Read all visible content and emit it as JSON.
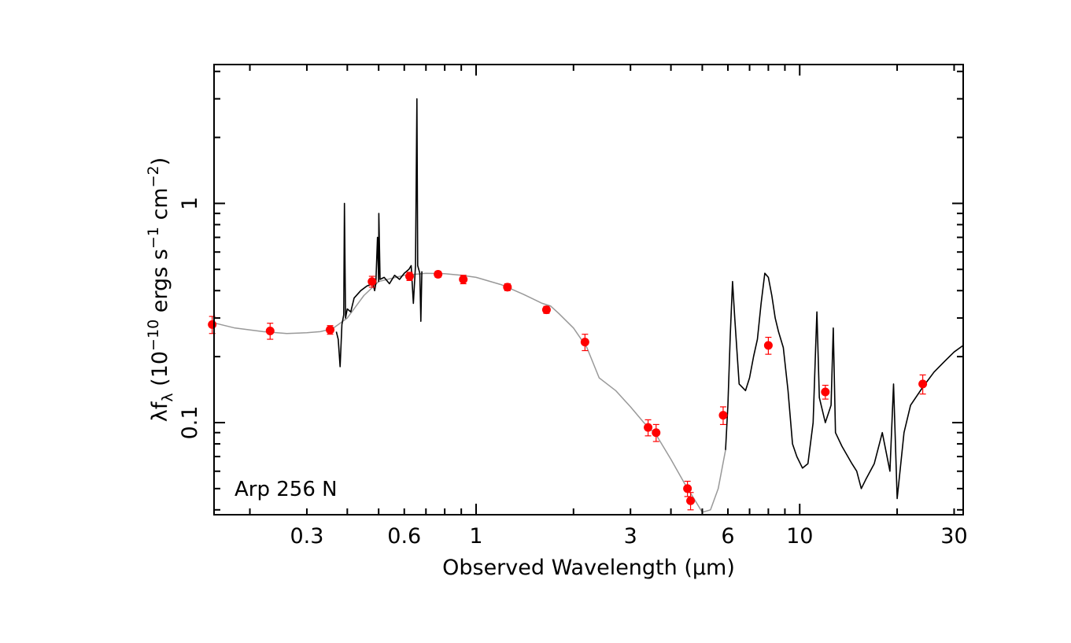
{
  "chart_data": {
    "type": "scatter",
    "title": "",
    "annotation": "Arp 256 N",
    "xlabel": "Observed Wavelength (μm)",
    "ylabel": {
      "base": "λf",
      "base_sub": "λ",
      "pre": " (10",
      "exp1": "−10",
      "mid1": " ergs s",
      "exp2": "−1",
      "mid2": " cm",
      "exp3": "−2",
      "post": ")"
    },
    "xscale": "log",
    "yscale": "log",
    "xlim": [
      0.155,
      32
    ],
    "ylim": [
      0.038,
      4.3
    ],
    "x_ticks": [
      {
        "value": 0.3,
        "label": "0.3"
      },
      {
        "value": 0.6,
        "label": "0.6"
      },
      {
        "value": 1,
        "label": "1"
      },
      {
        "value": 3,
        "label": "3"
      },
      {
        "value": 6,
        "label": "6"
      },
      {
        "value": 10,
        "label": "10"
      },
      {
        "value": 30,
        "label": "30"
      }
    ],
    "y_ticks": [
      {
        "value": 0.1,
        "label": "0.1"
      },
      {
        "value": 1,
        "label": "1"
      }
    ],
    "colors": {
      "photometry": "#ff0000",
      "spectrum_observed": "#000000",
      "model": "#999999",
      "axes": "#000000"
    },
    "series": [
      {
        "kind": "photometry",
        "points": [
          {
            "x": 0.153,
            "y": 0.28,
            "err": 0.025
          },
          {
            "x": 0.231,
            "y": 0.262,
            "err": 0.022
          },
          {
            "x": 0.354,
            "y": 0.265,
            "err": 0.012
          },
          {
            "x": 0.477,
            "y": 0.44,
            "err": 0.025
          },
          {
            "x": 0.623,
            "y": 0.465,
            "err": 0.02
          },
          {
            "x": 0.763,
            "y": 0.475,
            "err": 0.015
          },
          {
            "x": 0.913,
            "y": 0.45,
            "err": 0.02
          },
          {
            "x": 1.25,
            "y": 0.415,
            "err": 0.015
          },
          {
            "x": 1.65,
            "y": 0.327,
            "err": 0.012
          },
          {
            "x": 2.17,
            "y": 0.233,
            "err": 0.02
          },
          {
            "x": 3.4,
            "y": 0.095,
            "err": 0.008
          },
          {
            "x": 3.6,
            "y": 0.09,
            "err": 0.008
          },
          {
            "x": 4.5,
            "y": 0.05,
            "err": 0.004
          },
          {
            "x": 4.6,
            "y": 0.044,
            "err": 0.004
          },
          {
            "x": 5.8,
            "y": 0.108,
            "err": 0.01
          },
          {
            "x": 8.0,
            "y": 0.225,
            "err": 0.02
          },
          {
            "x": 12.0,
            "y": 0.138,
            "err": 0.01
          },
          {
            "x": 24.0,
            "y": 0.15,
            "err": 0.015
          }
        ]
      },
      {
        "kind": "model-sed",
        "line": [
          [
            0.155,
            0.285
          ],
          [
            0.18,
            0.27
          ],
          [
            0.22,
            0.26
          ],
          [
            0.26,
            0.255
          ],
          [
            0.3,
            0.257
          ],
          [
            0.33,
            0.26
          ],
          [
            0.36,
            0.268
          ],
          [
            0.4,
            0.3
          ],
          [
            0.45,
            0.38
          ],
          [
            0.5,
            0.44
          ],
          [
            0.6,
            0.47
          ],
          [
            0.7,
            0.48
          ],
          [
            0.8,
            0.478
          ],
          [
            0.9,
            0.47
          ],
          [
            1.0,
            0.46
          ],
          [
            1.2,
            0.425
          ],
          [
            1.4,
            0.385
          ],
          [
            1.6,
            0.35
          ],
          [
            1.7,
            0.34
          ],
          [
            1.8,
            0.315
          ],
          [
            2.0,
            0.27
          ],
          [
            2.2,
            0.22
          ],
          [
            2.4,
            0.16
          ],
          [
            2.7,
            0.14
          ],
          [
            3.0,
            0.118
          ],
          [
            3.3,
            0.1
          ],
          [
            3.6,
            0.088
          ],
          [
            4.0,
            0.068
          ],
          [
            4.4,
            0.053
          ],
          [
            4.8,
            0.043
          ],
          [
            5.0,
            0.039
          ],
          [
            5.3,
            0.04
          ],
          [
            5.6,
            0.05
          ],
          [
            5.9,
            0.075
          ]
        ]
      },
      {
        "kind": "observed-spectrum-optical",
        "line": [
          [
            0.37,
            0.26
          ],
          [
            0.375,
            0.24
          ],
          [
            0.38,
            0.18
          ],
          [
            0.385,
            0.28
          ],
          [
            0.39,
            0.31
          ],
          [
            0.392,
            1.0
          ],
          [
            0.395,
            0.3
          ],
          [
            0.4,
            0.33
          ],
          [
            0.41,
            0.32
          ],
          [
            0.42,
            0.37
          ],
          [
            0.44,
            0.4
          ],
          [
            0.46,
            0.42
          ],
          [
            0.48,
            0.43
          ],
          [
            0.486,
            0.4
          ],
          [
            0.49,
            0.43
          ],
          [
            0.496,
            0.7
          ],
          [
            0.5,
            0.44
          ],
          [
            0.5007,
            0.9
          ],
          [
            0.505,
            0.45
          ],
          [
            0.52,
            0.46
          ],
          [
            0.54,
            0.43
          ],
          [
            0.56,
            0.47
          ],
          [
            0.58,
            0.45
          ],
          [
            0.6,
            0.48
          ],
          [
            0.62,
            0.5
          ],
          [
            0.63,
            0.52
          ],
          [
            0.64,
            0.35
          ],
          [
            0.65,
            0.52
          ],
          [
            0.6563,
            3.0
          ],
          [
            0.66,
            0.52
          ],
          [
            0.67,
            0.48
          ],
          [
            0.675,
            0.29
          ],
          [
            0.68,
            0.49
          ]
        ]
      },
      {
        "kind": "observed-spectrum-ir",
        "line": [
          [
            5.9,
            0.075
          ],
          [
            6.0,
            0.12
          ],
          [
            6.1,
            0.25
          ],
          [
            6.2,
            0.44
          ],
          [
            6.3,
            0.3
          ],
          [
            6.5,
            0.15
          ],
          [
            6.8,
            0.14
          ],
          [
            7.0,
            0.16
          ],
          [
            7.2,
            0.2
          ],
          [
            7.4,
            0.24
          ],
          [
            7.6,
            0.35
          ],
          [
            7.8,
            0.48
          ],
          [
            8.0,
            0.46
          ],
          [
            8.2,
            0.38
          ],
          [
            8.4,
            0.3
          ],
          [
            8.6,
            0.26
          ],
          [
            8.9,
            0.22
          ],
          [
            9.2,
            0.14
          ],
          [
            9.5,
            0.08
          ],
          [
            9.8,
            0.07
          ],
          [
            10.2,
            0.062
          ],
          [
            10.6,
            0.065
          ],
          [
            11.0,
            0.1
          ],
          [
            11.2,
            0.22
          ],
          [
            11.3,
            0.32
          ],
          [
            11.5,
            0.13
          ],
          [
            12.0,
            0.1
          ],
          [
            12.5,
            0.12
          ],
          [
            12.7,
            0.27
          ],
          [
            12.9,
            0.09
          ],
          [
            13.5,
            0.078
          ],
          [
            14.5,
            0.065
          ],
          [
            15.0,
            0.06
          ],
          [
            15.5,
            0.05
          ],
          [
            16.0,
            0.055
          ],
          [
            17.0,
            0.065
          ],
          [
            18.0,
            0.09
          ],
          [
            19.0,
            0.06
          ],
          [
            19.5,
            0.15
          ],
          [
            20.0,
            0.045
          ],
          [
            21.0,
            0.09
          ],
          [
            22.0,
            0.12
          ],
          [
            24.0,
            0.145
          ],
          [
            26.0,
            0.17
          ],
          [
            28.0,
            0.19
          ],
          [
            30.0,
            0.21
          ],
          [
            32.0,
            0.225
          ]
        ]
      }
    ]
  }
}
